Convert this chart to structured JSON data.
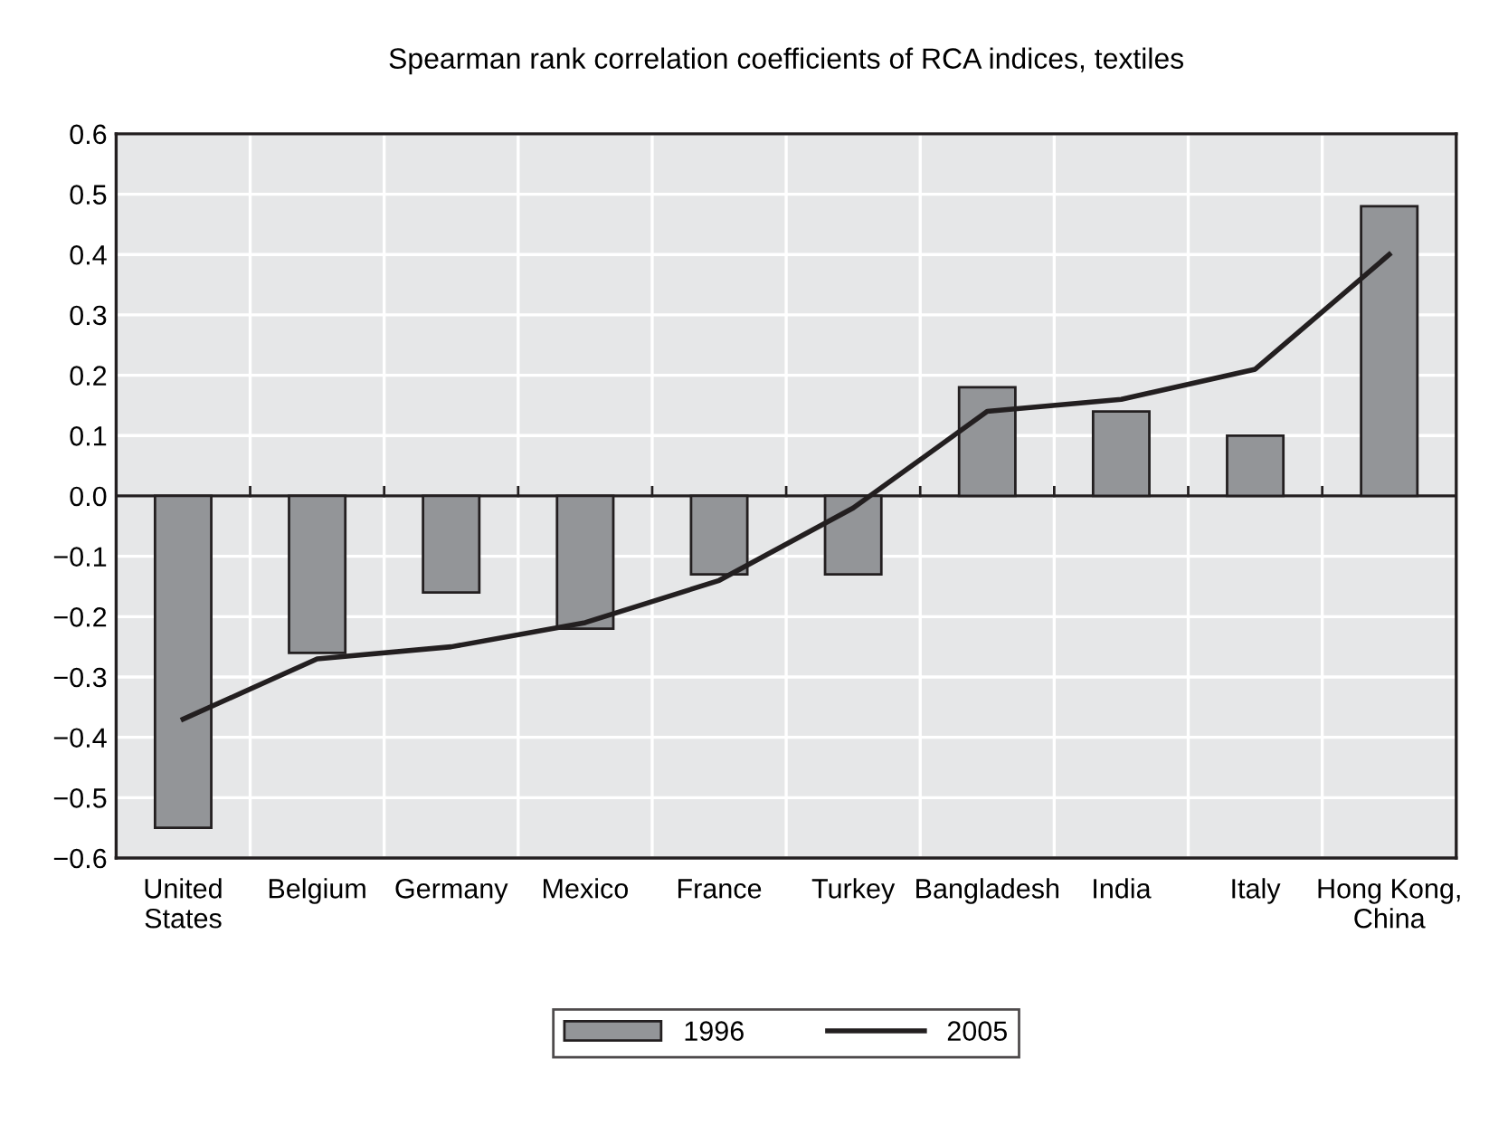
{
  "chart_data": {
    "type": "bar",
    "title": "Spearman rank correlation coefficients of RCA indices, textiles",
    "categories": [
      "United States",
      "Belgium",
      "Germany",
      "Mexico",
      "France",
      "Turkey",
      "Bangladesh",
      "India",
      "Italy",
      "Hong Kong, China"
    ],
    "series": [
      {
        "name": "1996",
        "color": "#939598",
        "values": [
          -0.55,
          -0.26,
          -0.16,
          -0.22,
          -0.13,
          -0.13,
          0.18,
          0.14,
          0.1,
          0.48
        ]
      },
      {
        "name": "2005",
        "type": "line",
        "color": "#231f20",
        "values": [
          -0.37,
          -0.27,
          -0.25,
          -0.21,
          -0.14,
          -0.02,
          0.14,
          0.16,
          0.21,
          0.4
        ]
      }
    ],
    "ylim": [
      -0.6,
      0.6
    ],
    "yticks": [
      {
        "value": -0.6,
        "label": "−0.6"
      },
      {
        "value": -0.5,
        "label": "−0.5"
      },
      {
        "value": -0.4,
        "label": "−0.4"
      },
      {
        "value": -0.3,
        "label": "−0.3"
      },
      {
        "value": -0.2,
        "label": "−0.2"
      },
      {
        "value": -0.1,
        "label": "−0.1"
      },
      {
        "value": 0,
        "label": "0.0"
      },
      {
        "value": 0.1,
        "label": "0.1"
      },
      {
        "value": 0.2,
        "label": "0.2"
      },
      {
        "value": 0.3,
        "label": "0.3"
      },
      {
        "value": 0.4,
        "label": "0.4"
      },
      {
        "value": 0.5,
        "label": "0.5"
      },
      {
        "value": 0.6,
        "label": "0.6"
      }
    ],
    "grid": true,
    "legend": "bottom",
    "marker": "none",
    "line_style": "solid"
  }
}
